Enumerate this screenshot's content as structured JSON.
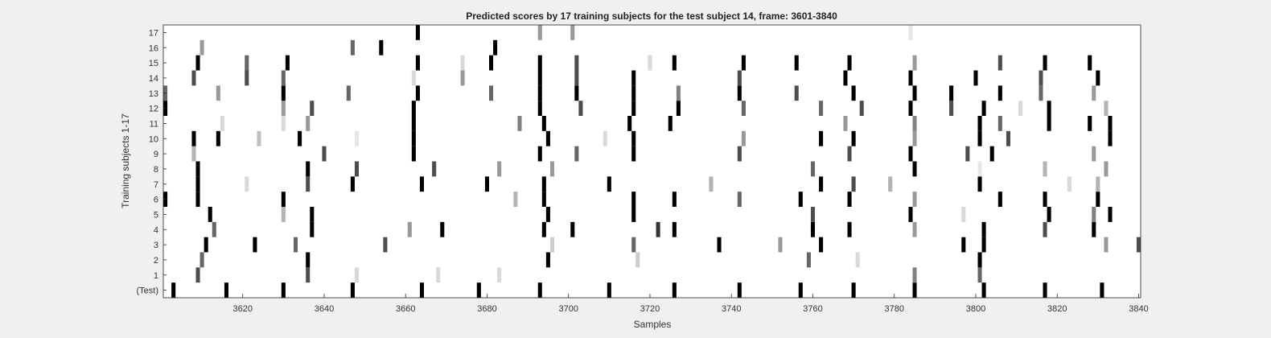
{
  "chart_data": {
    "type": "heatmap",
    "title": "Predicted scores by 17 training subjects for the test subject 14, frame: 3601-3840",
    "xlabel": "Samples",
    "ylabel": "Training subjects 1-17",
    "xlim": [
      3601,
      3840
    ],
    "xticks": [
      3620,
      3640,
      3660,
      3680,
      3700,
      3720,
      3740,
      3760,
      3780,
      3800,
      3820,
      3840
    ],
    "rows": [
      "(Test)",
      "1",
      "2",
      "3",
      "4",
      "5",
      "6",
      "7",
      "8",
      "9",
      "10",
      "11",
      "12",
      "13",
      "14",
      "15",
      "16",
      "17"
    ],
    "colormap": "gray (0 = black, 1 = white)",
    "marks": {
      "(Test)": [
        [
          3603,
          0.0
        ],
        [
          3616,
          0.0
        ],
        [
          3630,
          0.0
        ],
        [
          3647,
          0.0
        ],
        [
          3664,
          0.0
        ],
        [
          3678,
          0.0
        ],
        [
          3693,
          0.0
        ],
        [
          3710,
          0.0
        ],
        [
          3726,
          0.0
        ],
        [
          3742,
          0.0
        ],
        [
          3757,
          0.0
        ],
        [
          3770,
          0.0
        ],
        [
          3785,
          0.0
        ],
        [
          3802,
          0.0
        ],
        [
          3817,
          0.0
        ],
        [
          3831,
          0.0
        ]
      ],
      "1": [
        [
          3609,
          0.3
        ],
        [
          3636,
          0.3
        ],
        [
          3648,
          0.85
        ],
        [
          3668,
          0.85
        ],
        [
          3683,
          0.85
        ],
        [
          3785,
          0.5
        ],
        [
          3801,
          0.4
        ]
      ],
      "2": [
        [
          3610,
          0.4
        ],
        [
          3636,
          0.0
        ],
        [
          3695,
          0.0
        ],
        [
          3717,
          0.8
        ],
        [
          3759,
          0.4
        ],
        [
          3771,
          0.85
        ],
        [
          3801,
          0.0
        ]
      ],
      "3": [
        [
          3611,
          0.0
        ],
        [
          3623,
          0.0
        ],
        [
          3633,
          0.4
        ],
        [
          3655,
          0.3
        ],
        [
          3696,
          0.8
        ],
        [
          3716,
          0.4
        ],
        [
          3737,
          0.0
        ],
        [
          3752,
          0.6
        ],
        [
          3762,
          0.0
        ],
        [
          3797,
          0.0
        ],
        [
          3802,
          0.0
        ],
        [
          3832,
          0.6
        ],
        [
          3840,
          0.3
        ]
      ],
      "4": [
        [
          3613,
          0.4
        ],
        [
          3637,
          0.0
        ],
        [
          3661,
          0.6
        ],
        [
          3669,
          0.0
        ],
        [
          3694,
          0.0
        ],
        [
          3701,
          0.0
        ],
        [
          3722,
          0.2
        ],
        [
          3726,
          0.0
        ],
        [
          3760,
          0.0
        ],
        [
          3769,
          0.0
        ],
        [
          3785,
          0.6
        ],
        [
          3802,
          0.0
        ],
        [
          3817,
          0.3
        ],
        [
          3829,
          0.0
        ]
      ],
      "5": [
        [
          3612,
          0.0
        ],
        [
          3630,
          0.7
        ],
        [
          3637,
          0.0
        ],
        [
          3695,
          0.0
        ],
        [
          3716,
          0.0
        ],
        [
          3760,
          0.3
        ],
        [
          3784,
          0.0
        ],
        [
          3797,
          0.85
        ],
        [
          3818,
          0.0
        ],
        [
          3829,
          0.5
        ],
        [
          3833,
          0.0
        ]
      ],
      "6": [
        [
          3601,
          0.0
        ],
        [
          3609,
          0.0
        ],
        [
          3630,
          0.0
        ],
        [
          3687,
          0.7
        ],
        [
          3694,
          0.0
        ],
        [
          3716,
          0.0
        ],
        [
          3726,
          0.0
        ],
        [
          3742,
          0.4
        ],
        [
          3757,
          0.0
        ],
        [
          3769,
          0.0
        ],
        [
          3785,
          0.6
        ],
        [
          3806,
          0.0
        ],
        [
          3817,
          0.0
        ],
        [
          3830,
          0.0
        ]
      ],
      "7": [
        [
          3609,
          0.0
        ],
        [
          3621,
          0.85
        ],
        [
          3636,
          0.3
        ],
        [
          3647,
          0.0
        ],
        [
          3664,
          0.0
        ],
        [
          3680,
          0.0
        ],
        [
          3694,
          0.0
        ],
        [
          3710,
          0.0
        ],
        [
          3735,
          0.7
        ],
        [
          3762,
          0.0
        ],
        [
          3770,
          0.3
        ],
        [
          3779,
          0.7
        ],
        [
          3801,
          0.0
        ],
        [
          3823,
          0.85
        ],
        [
          3830,
          0.7
        ]
      ],
      "8": [
        [
          3609,
          0.0
        ],
        [
          3636,
          0.0
        ],
        [
          3648,
          0.3
        ],
        [
          3667,
          0.3
        ],
        [
          3683,
          0.6
        ],
        [
          3696,
          0.6
        ],
        [
          3760,
          0.4
        ],
        [
          3785,
          0.0
        ],
        [
          3801,
          0.9
        ],
        [
          3817,
          0.7
        ],
        [
          3832,
          0.6
        ]
      ],
      "9": [
        [
          3608,
          0.7
        ],
        [
          3640,
          0.3
        ],
        [
          3662,
          0.0
        ],
        [
          3693,
          0.0
        ],
        [
          3702,
          0.4
        ],
        [
          3716,
          0.0
        ],
        [
          3742,
          0.3
        ],
        [
          3769,
          0.3
        ],
        [
          3784,
          0.0
        ],
        [
          3798,
          0.3
        ],
        [
          3804,
          0.0
        ],
        [
          3829,
          0.6
        ]
      ],
      "10": [
        [
          3608,
          0.0
        ],
        [
          3614,
          0.0
        ],
        [
          3624,
          0.75
        ],
        [
          3634,
          0.0
        ],
        [
          3648,
          0.9
        ],
        [
          3662,
          0.0
        ],
        [
          3695,
          0.0
        ],
        [
          3709,
          0.85
        ],
        [
          3716,
          0.0
        ],
        [
          3743,
          0.6
        ],
        [
          3762,
          0.0
        ],
        [
          3770,
          0.0
        ],
        [
          3785,
          0.6
        ],
        [
          3801,
          0.0
        ],
        [
          3808,
          0.3
        ],
        [
          3833,
          0.0
        ]
      ],
      "11": [
        [
          3615,
          0.85
        ],
        [
          3630,
          0.85
        ],
        [
          3636,
          0.6
        ],
        [
          3662,
          0.0
        ],
        [
          3688,
          0.5
        ],
        [
          3694,
          0.0
        ],
        [
          3715,
          0.0
        ],
        [
          3725,
          0.0
        ],
        [
          3768,
          0.6
        ],
        [
          3785,
          0.5
        ],
        [
          3801,
          0.0
        ],
        [
          3806,
          0.4
        ],
        [
          3818,
          0.0
        ],
        [
          3828,
          0.0
        ],
        [
          3833,
          0.0
        ]
      ],
      "12": [
        [
          3601,
          0.0
        ],
        [
          3630,
          0.6
        ],
        [
          3637,
          0.3
        ],
        [
          3662,
          0.0
        ],
        [
          3693,
          0.0
        ],
        [
          3703,
          0.3
        ],
        [
          3716,
          0.0
        ],
        [
          3727,
          0.0
        ],
        [
          3743,
          0.4
        ],
        [
          3762,
          0.4
        ],
        [
          3772,
          0.3
        ],
        [
          3784,
          0.0
        ],
        [
          3794,
          0.3
        ],
        [
          3802,
          0.0
        ],
        [
          3811,
          0.85
        ],
        [
          3818,
          0.0
        ],
        [
          3832,
          0.7
        ]
      ],
      "13": [
        [
          3601,
          0.4
        ],
        [
          3614,
          0.6
        ],
        [
          3630,
          0.0
        ],
        [
          3646,
          0.4
        ],
        [
          3663,
          0.0
        ],
        [
          3681,
          0.4
        ],
        [
          3693,
          0.0
        ],
        [
          3702,
          0.0
        ],
        [
          3716,
          0.0
        ],
        [
          3727,
          0.5
        ],
        [
          3742,
          0.0
        ],
        [
          3756,
          0.3
        ],
        [
          3770,
          0.0
        ],
        [
          3785,
          0.0
        ],
        [
          3794,
          0.0
        ],
        [
          3806,
          0.0
        ],
        [
          3816,
          0.4
        ],
        [
          3829,
          0.6
        ]
      ],
      "14": [
        [
          3608,
          0.3
        ],
        [
          3621,
          0.3
        ],
        [
          3630,
          0.4
        ],
        [
          3662,
          0.85
        ],
        [
          3674,
          0.6
        ],
        [
          3693,
          0.0
        ],
        [
          3702,
          0.3
        ],
        [
          3716,
          0.0
        ],
        [
          3742,
          0.3
        ],
        [
          3768,
          0.0
        ],
        [
          3784,
          0.0
        ],
        [
          3800,
          0.0
        ],
        [
          3816,
          0.3
        ],
        [
          3830,
          0.0
        ]
      ],
      "15": [
        [
          3609,
          0.0
        ],
        [
          3621,
          0.4
        ],
        [
          3631,
          0.0
        ],
        [
          3663,
          0.0
        ],
        [
          3674,
          0.85
        ],
        [
          3681,
          0.0
        ],
        [
          3693,
          0.0
        ],
        [
          3702,
          0.3
        ],
        [
          3720,
          0.85
        ],
        [
          3726,
          0.0
        ],
        [
          3743,
          0.0
        ],
        [
          3756,
          0.0
        ],
        [
          3769,
          0.0
        ],
        [
          3785,
          0.6
        ],
        [
          3806,
          0.3
        ],
        [
          3817,
          0.0
        ],
        [
          3828,
          0.0
        ]
      ],
      "16": [
        [
          3610,
          0.6
        ],
        [
          3647,
          0.4
        ],
        [
          3654,
          0.0
        ],
        [
          3682,
          0.0
        ]
      ],
      "17": [
        [
          3663,
          0.0
        ],
        [
          3693,
          0.6
        ],
        [
          3701,
          0.6
        ],
        [
          3784,
          0.9
        ]
      ]
    }
  }
}
